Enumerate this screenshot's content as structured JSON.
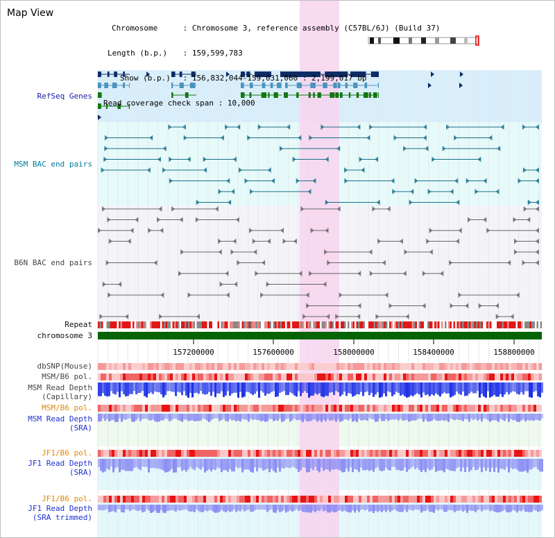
{
  "window": {
    "title": "Map View"
  },
  "info": {
    "chromosome_key": "Chromosome",
    "chromosome_value": "Chromosome 3, reference assembly (C57BL/6J) (Build 37)",
    "length_key": "Length (b.p.)",
    "length_value": "159,599,783",
    "show_key": "Show (b.p.)",
    "show_value": "156,832,044-159,031,060 : 2,199,017 bp",
    "coverage_key": "Read coverage check span",
    "coverage_value": "10,000"
  },
  "tracks": {
    "refseq": "RefSeq Genes",
    "msm_bac": "MSM BAC end pairs",
    "b6n_bac": "B6N BAC end pairs",
    "repeat": "Repeat",
    "chromosome": "chromosome 3",
    "dbsnp": "dbSNP(Mouse)",
    "msm_b6_pol_1": "MSM/B6 pol.",
    "msm_depth_cap_1": "MSM Read Depth",
    "msm_depth_cap_2": "(Capillary)",
    "msm_b6_pol_2": "MSM/B6 pol.",
    "msm_depth_sra_1": "MSM Read Depth",
    "msm_depth_sra_2": "(SRA)",
    "jf1_b6_pol_1": "JF1/B6 pol.",
    "jf1_depth_sra_1": "JF1 Read Depth",
    "jf1_depth_sra_2": "(SRA)",
    "jf1_b6_pol_2": "JF1/B6 pol.",
    "jf1_depth_trim_1": "JF1 Read Depth",
    "jf1_depth_trim_2": "(SRA trimmed)"
  },
  "axis": {
    "ticks": [
      "157200000",
      "157600000",
      "158000000",
      "158400000",
      "158800000"
    ]
  },
  "colors": {
    "refseq_bg": "#d9eefb",
    "msm_bg": "#e6fafa",
    "highlight": "#f7d4ee",
    "navy_gene": "#0d2c66",
    "blue_gene": "#4a93be",
    "green_gene": "#117711",
    "repeat_red": "#e01818",
    "chrom_green": "#056405",
    "depth_blue": "#1a2ee6",
    "depth_sra": "#8a8cf3"
  }
}
